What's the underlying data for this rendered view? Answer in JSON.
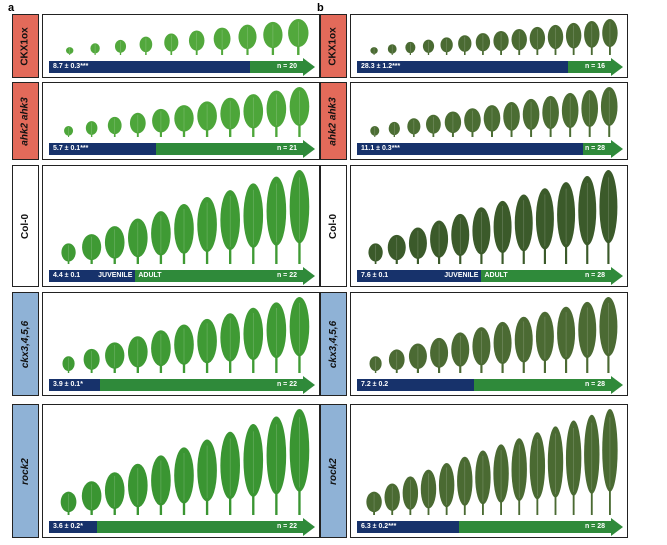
{
  "panels": [
    {
      "letter": "a",
      "rows": [
        {
          "genotype": "CKX1ox",
          "color": "red",
          "italic": false,
          "stat": "8.7 ± 0.3***",
          "n": "n = 20",
          "juvenile_fraction": 0.79,
          "phase_labels": null,
          "leaf_color": "#52a83c",
          "leaves": 10
        },
        {
          "genotype": "ahk2 ahk3",
          "color": "red",
          "italic": true,
          "stat": "5.7 ± 0.1***",
          "n": "n = 21",
          "juvenile_fraction": 0.42,
          "phase_labels": null,
          "leaf_color": "#4da63a",
          "leaves": 11
        },
        {
          "genotype": "Col-0",
          "color": "white",
          "italic": false,
          "stat": "4.4 ± 0.1",
          "n": "n = 22",
          "juvenile_fraction": 0.34,
          "phase_labels": {
            "juvenile": "JUVENILE",
            "adult": "ADULT"
          },
          "leaf_color": "#3f9a34",
          "leaves": 11
        },
        {
          "genotype": "ckx3,4,5,6",
          "color": "blue",
          "italic": true,
          "stat": "3.9 ± 0.1*",
          "n": "n = 22",
          "juvenile_fraction": 0.2,
          "phase_labels": null,
          "leaf_color": "#3f9a34",
          "leaves": 11
        },
        {
          "genotype": "rock2",
          "color": "blue",
          "italic": true,
          "stat": "3.6 ± 0.2*",
          "n": "n = 22",
          "juvenile_fraction": 0.19,
          "phase_labels": null,
          "leaf_color": "#3a9532",
          "leaves": 11
        }
      ]
    },
    {
      "letter": "b",
      "rows": [
        {
          "genotype": "CKX1ox",
          "color": "red",
          "italic": false,
          "stat": "28.3 ± 1.2***",
          "n": "n = 16",
          "juvenile_fraction": 0.83,
          "phase_labels": null,
          "leaf_color": "#4a6a32",
          "leaves": 14
        },
        {
          "genotype": "ahk2 ahk3",
          "color": "red",
          "italic": true,
          "stat": "11.1 ± 0.3***",
          "n": "n = 28",
          "juvenile_fraction": 0.89,
          "phase_labels": null,
          "leaf_color": "#4b6d33",
          "leaves": 13
        },
        {
          "genotype": "Col-0",
          "color": "white",
          "italic": false,
          "stat": "7.6 ± 0.1",
          "n": "n = 28",
          "juvenile_fraction": 0.49,
          "phase_labels": {
            "juvenile": "JUVENILE",
            "adult": "ADULT"
          },
          "leaf_color": "#3b5a2a",
          "leaves": 12
        },
        {
          "genotype": "ckx3,4,5,6",
          "color": "blue",
          "italic": true,
          "stat": "7.2 ± 0.2",
          "n": "n = 28",
          "juvenile_fraction": 0.46,
          "phase_labels": null,
          "leaf_color": "#4b6a33",
          "leaves": 12
        },
        {
          "genotype": "rock2",
          "color": "blue",
          "italic": true,
          "stat": "6.3 ± 0.2***",
          "n": "n = 28",
          "juvenile_fraction": 0.4,
          "phase_labels": null,
          "leaf_color": "#4a6a32",
          "leaves": 14
        }
      ]
    }
  ]
}
